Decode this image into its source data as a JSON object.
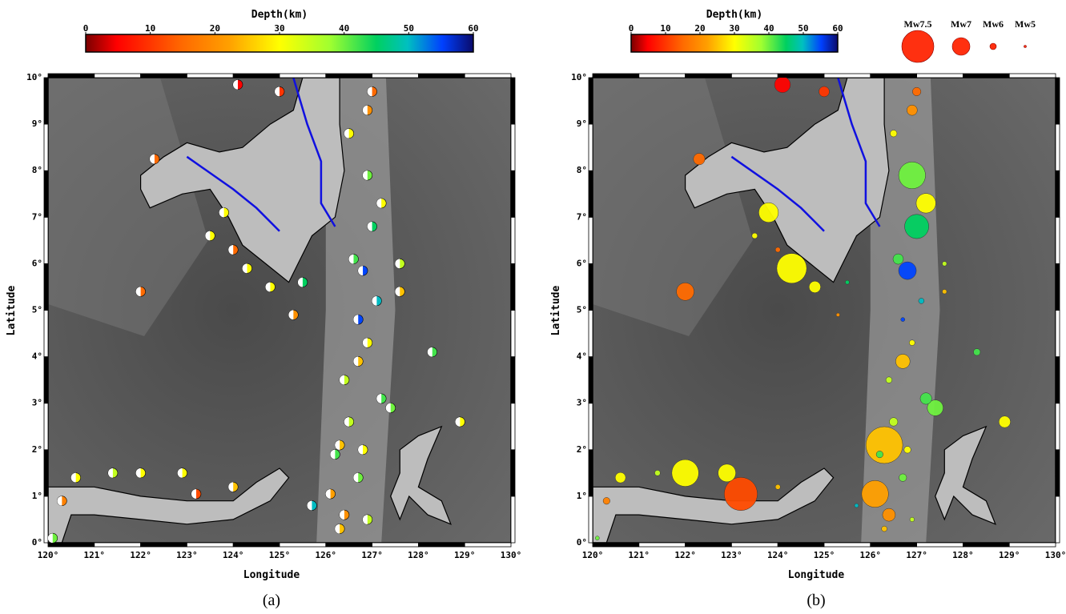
{
  "panels": [
    {
      "colorbar": {
        "title": "Depth(km)",
        "ticks": [
          0,
          10,
          20,
          30,
          40,
          50,
          60
        ]
      },
      "x_axis": {
        "title": "Longitude",
        "ticks": [
          "120°",
          "121°",
          "122°",
          "123°",
          "124°",
          "125°",
          "126°",
          "127°",
          "128°",
          "129°",
          "130°"
        ]
      },
      "y_axis": {
        "title": "Latitude",
        "ticks": [
          "0°",
          "1°",
          "2°",
          "3°",
          "4°",
          "5°",
          "6°",
          "7°",
          "8°",
          "9°",
          "10°"
        ]
      },
      "caption": "(a)"
    },
    {
      "colorbar": {
        "title": "Depth(km)",
        "ticks": [
          0,
          10,
          20,
          30,
          40,
          50,
          60
        ]
      },
      "x_axis": {
        "title": "Longitude",
        "ticks": [
          "120°",
          "121°",
          "122°",
          "123°",
          "124°",
          "125°",
          "126°",
          "127°",
          "128°",
          "129°",
          "130°"
        ]
      },
      "y_axis": {
        "title": "Latitude",
        "ticks": [
          "0°",
          "1°",
          "2°",
          "3°",
          "4°",
          "5°",
          "6°",
          "7°",
          "8°",
          "9°",
          "10°"
        ]
      },
      "magnitude_legend": [
        "Mw7.5",
        "Mw7",
        "Mw6",
        "Mw5"
      ],
      "caption": "(b)"
    }
  ],
  "events": [
    {
      "lon": 126.9,
      "lat": 7.9,
      "depth_km": 40,
      "mw": 7.3
    },
    {
      "lon": 127.0,
      "lat": 6.8,
      "depth_km": 45,
      "mw": 7.2
    },
    {
      "lon": 127.2,
      "lat": 7.3,
      "depth_km": 30,
      "mw": 7.0
    },
    {
      "lon": 126.8,
      "lat": 5.85,
      "depth_km": 55,
      "mw": 6.9
    },
    {
      "lon": 126.6,
      "lat": 6.1,
      "depth_km": 42,
      "mw": 6.4
    },
    {
      "lon": 124.3,
      "lat": 5.9,
      "depth_km": 30,
      "mw": 7.4
    },
    {
      "lon": 123.8,
      "lat": 7.1,
      "depth_km": 30,
      "mw": 7.0
    },
    {
      "lon": 124.8,
      "lat": 5.5,
      "depth_km": 30,
      "mw": 6.5
    },
    {
      "lon": 122.0,
      "lat": 5.4,
      "depth_km": 15,
      "mw": 6.9
    },
    {
      "lon": 124.1,
      "lat": 9.85,
      "depth_km": 5,
      "mw": 6.8
    },
    {
      "lon": 125.0,
      "lat": 9.7,
      "depth_km": 10,
      "mw": 6.4
    },
    {
      "lon": 122.3,
      "lat": 8.25,
      "depth_km": 15,
      "mw": 6.5
    },
    {
      "lon": 122.0,
      "lat": 1.5,
      "depth_km": 30,
      "mw": 7.3
    },
    {
      "lon": 123.2,
      "lat": 1.05,
      "depth_km": 12,
      "mw": 7.5
    },
    {
      "lon": 122.9,
      "lat": 1.5,
      "depth_km": 30,
      "mw": 6.9
    },
    {
      "lon": 120.6,
      "lat": 1.4,
      "depth_km": 30,
      "mw": 6.4
    },
    {
      "lon": 120.3,
      "lat": 0.9,
      "depth_km": 18,
      "mw": 6.0
    },
    {
      "lon": 126.3,
      "lat": 2.1,
      "depth_km": 25,
      "mw": 7.6
    },
    {
      "lon": 126.1,
      "lat": 1.05,
      "depth_km": 22,
      "mw": 7.3
    },
    {
      "lon": 127.4,
      "lat": 2.9,
      "depth_km": 40,
      "mw": 6.8
    },
    {
      "lon": 127.2,
      "lat": 3.1,
      "depth_km": 42,
      "mw": 6.5
    },
    {
      "lon": 126.7,
      "lat": 3.9,
      "depth_km": 25,
      "mw": 6.7
    },
    {
      "lon": 126.4,
      "lat": 0.6,
      "depth_km": 20,
      "mw": 6.6
    },
    {
      "lon": 126.9,
      "lat": 9.3,
      "depth_km": 20,
      "mw": 6.4
    },
    {
      "lon": 127.0,
      "lat": 9.7,
      "depth_km": 15,
      "mw": 6.2
    },
    {
      "lon": 126.5,
      "lat": 8.8,
      "depth_km": 30,
      "mw": 6.0
    },
    {
      "lon": 128.9,
      "lat": 2.6,
      "depth_km": 30,
      "mw": 6.5
    },
    {
      "lon": 128.3,
      "lat": 4.1,
      "depth_km": 42,
      "mw": 6.0
    },
    {
      "lon": 126.9,
      "lat": 4.3,
      "depth_km": 30,
      "mw": 5.8
    },
    {
      "lon": 126.5,
      "lat": 2.6,
      "depth_km": 35,
      "mw": 6.2
    },
    {
      "lon": 126.7,
      "lat": 1.4,
      "depth_km": 40,
      "mw": 6.1
    },
    {
      "lon": 126.2,
      "lat": 1.9,
      "depth_km": 42,
      "mw": 6.0
    },
    {
      "lon": 127.1,
      "lat": 5.2,
      "depth_km": 50,
      "mw": 5.8
    },
    {
      "lon": 126.7,
      "lat": 4.8,
      "depth_km": 55,
      "mw": 5.5
    },
    {
      "lon": 125.5,
      "lat": 5.6,
      "depth_km": 45,
      "mw": 5.5
    },
    {
      "lon": 125.3,
      "lat": 4.9,
      "depth_km": 20,
      "mw": 5.4
    },
    {
      "lon": 127.6,
      "lat": 5.4,
      "depth_km": 25,
      "mw": 5.6
    },
    {
      "lon": 126.3,
      "lat": 0.3,
      "depth_km": 25,
      "mw": 5.8
    },
    {
      "lon": 126.9,
      "lat": 0.5,
      "depth_km": 35,
      "mw": 5.6
    },
    {
      "lon": 125.7,
      "lat": 0.8,
      "depth_km": 50,
      "mw": 5.5
    },
    {
      "lon": 120.1,
      "lat": 0.1,
      "depth_km": 40,
      "mw": 5.5
    },
    {
      "lon": 127.6,
      "lat": 6.0,
      "depth_km": 35,
      "mw": 5.6
    },
    {
      "lon": 123.5,
      "lat": 6.6,
      "depth_km": 30,
      "mw": 5.8
    },
    {
      "lon": 124.0,
      "lat": 6.3,
      "depth_km": 15,
      "mw": 5.7
    },
    {
      "lon": 126.8,
      "lat": 2.0,
      "depth_km": 30,
      "mw": 6.0
    },
    {
      "lon": 126.4,
      "lat": 3.5,
      "depth_km": 35,
      "mw": 5.9
    },
    {
      "lon": 121.4,
      "lat": 1.5,
      "depth_km": 35,
      "mw": 5.8
    },
    {
      "lon": 124.0,
      "lat": 1.2,
      "depth_km": 25,
      "mw": 5.7
    }
  ]
}
